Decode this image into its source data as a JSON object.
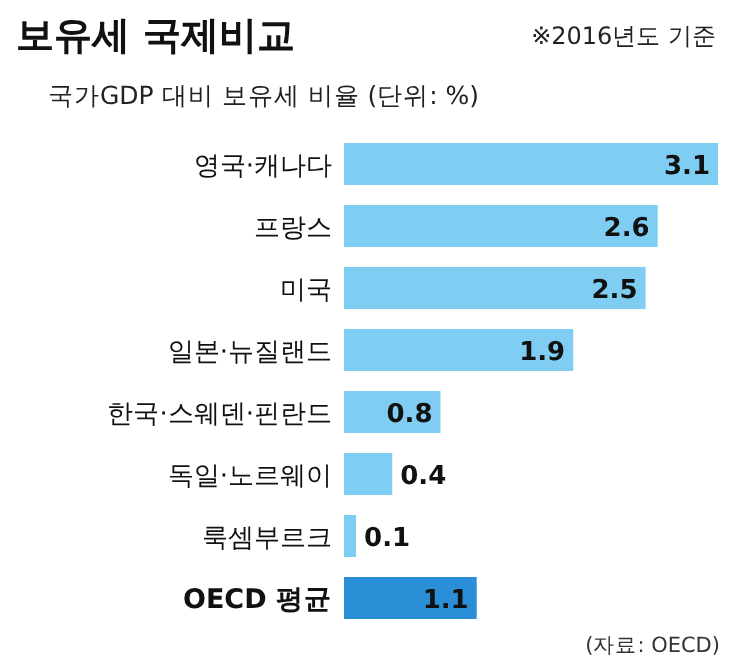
{
  "chart_data": {
    "type": "bar",
    "orientation": "horizontal",
    "title": "보유세 국제비교",
    "subtitle": "국가GDP 대비 보유세 비율 (단위: %)",
    "annotations": [
      "※2016년도 기준",
      "(자료: OECD)"
    ],
    "categories": [
      "영국·캐나다",
      "프랑스",
      "미국",
      "일본·뉴질랜드",
      "한국·스웨덴·핀란드",
      "독일·노르웨이",
      "룩셈부르크",
      "OECD 평균"
    ],
    "values": [
      3.1,
      2.6,
      2.5,
      1.9,
      0.8,
      0.4,
      0.1,
      1.1
    ],
    "colors": [
      "#7fcdf2",
      "#7fcdf2",
      "#7fcdf2",
      "#7fcdf2",
      "#7fcdf2",
      "#7fcdf2",
      "#7fcdf2",
      "#2b8fd8"
    ],
    "data_labels": true
  }
}
